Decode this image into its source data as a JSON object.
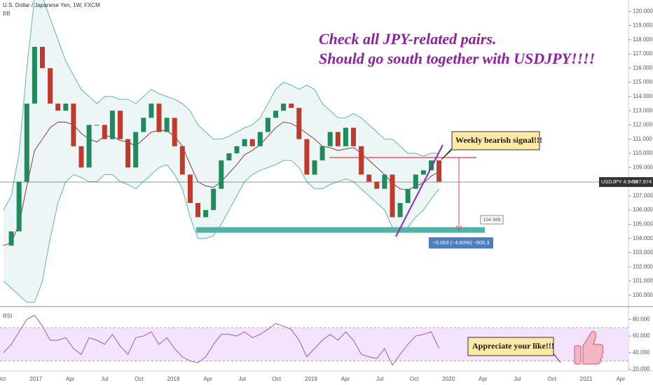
{
  "chart_data": {
    "type": "candlestick",
    "title": "U.S. Dollar / Japanese Yen, 1W, FXCM",
    "overlay_name": "BB",
    "rsi_name": "RSI",
    "headline": [
      "Check all JPY-related pairs.",
      "Should go south together with USDJPY!!!!"
    ],
    "callout_signal": "Weekly bearish signal!!!",
    "callout_like": "Appreciate your like!!!",
    "target_label": "104.686",
    "measure_label": "−5.053 (−4.60%) −505.3",
    "symbol_label": "USDJPY 4.94%",
    "current_price": {
      "value": 107.974,
      "label": "107.974"
    },
    "support": 104.6,
    "resistance": 109.7,
    "up_color": "#1f8a5c",
    "down_color": "#c0392b",
    "band_color": "#5fb3b3",
    "basis_color": "#8b3a3a",
    "rsi_color": "#9b59b6",
    "close": [
      103.5,
      104.5,
      108,
      113.5,
      117.5,
      116,
      113.5,
      113,
      113.5,
      110.5,
      109,
      112,
      112,
      111,
      113,
      111,
      109,
      111.5,
      112.5,
      113.5,
      111.5,
      112.5,
      110.5,
      108.5,
      106.5,
      105.5,
      106,
      107.5,
      109.5,
      110,
      110.5,
      111,
      110.5,
      111.5,
      112.5,
      113,
      113.5,
      113.2,
      111,
      108.5,
      109.5,
      110.5,
      111.5,
      110.5,
      111.8,
      110.5,
      108.5,
      108,
      107.5,
      108.5,
      105.5,
      106.5,
      107.5,
      108.5,
      108.8,
      109.5,
      108
    ],
    "bb_upper": [
      106,
      107,
      110,
      116,
      121,
      121,
      119.5,
      118,
      116.5,
      115.5,
      114.5,
      114,
      113.5,
      114,
      114,
      113.8,
      113.8,
      113.5,
      114,
      114.5,
      114.2,
      114,
      113.8,
      113.5,
      113,
      112,
      111.5,
      111,
      111,
      111.2,
      111.5,
      111.8,
      112,
      112.5,
      113.5,
      114.5,
      115,
      114.8,
      114.5,
      114.8,
      114.5,
      113.5,
      113,
      112.5,
      112.5,
      112.8,
      112.5,
      112,
      111.5,
      111,
      111,
      110.5,
      110,
      110,
      109.8,
      110,
      110
    ],
    "bb_basis": [
      103.5,
      103.7,
      105,
      107.7,
      110.2,
      111,
      111.8,
      112.2,
      112.2,
      112,
      111.4,
      111,
      110.8,
      111.2,
      111.2,
      110.9,
      110.8,
      110.5,
      111,
      111.5,
      111.6,
      111.6,
      111.2,
      110.5,
      109.2,
      108,
      107.7,
      107.6,
      108,
      108.6,
      109.2,
      109.9,
      110.2,
      110.6,
      111.2,
      111.8,
      112.2,
      112.1,
      111.8,
      111.4,
      111,
      110.5,
      110.4,
      110.2,
      110.3,
      110.4,
      110,
      109.5,
      109,
      108.5,
      107.9,
      107.5,
      107.4,
      107.7,
      107.9,
      108.4,
      108.7
    ],
    "bb_lower": [
      101,
      100.5,
      100,
      99.5,
      99.5,
      101,
      104,
      106.5,
      108,
      108.5,
      108.3,
      108,
      108,
      108.5,
      108.5,
      108,
      107.8,
      107.5,
      108,
      108.5,
      109,
      109.2,
      108.5,
      107.5,
      105.5,
      104,
      104,
      104.2,
      105,
      106,
      107,
      108,
      108.5,
      108.8,
      109,
      109.2,
      109.5,
      109.5,
      109,
      108,
      107.5,
      107.5,
      107.8,
      108,
      108.2,
      108,
      107.5,
      107,
      106.5,
      106,
      104.8,
      104.5,
      104.8,
      105.5,
      106,
      106.8,
      107.5
    ],
    "rsi": [
      40,
      50,
      65,
      80,
      85,
      72,
      55,
      55,
      58,
      45,
      38,
      58,
      55,
      50,
      62,
      48,
      38,
      58,
      60,
      65,
      50,
      58,
      45,
      35,
      30,
      28,
      35,
      50,
      62,
      62,
      60,
      65,
      58,
      62,
      68,
      75,
      72,
      68,
      55,
      35,
      45,
      55,
      62,
      55,
      65,
      55,
      38,
      35,
      33,
      45,
      25,
      38,
      50,
      60,
      62,
      65,
      45
    ],
    "rsi_bands": [
      30,
      70
    ],
    "ylim": [
      99.2,
      120.8
    ],
    "yticks": [
      {
        "value": 100,
        "label": "100.000"
      },
      {
        "value": 101,
        "label": "101.000"
      },
      {
        "value": 102,
        "label": "102.000"
      },
      {
        "value": 103,
        "label": "103.000"
      },
      {
        "value": 104,
        "label": "104.000"
      },
      {
        "value": 105,
        "label": "105.000"
      },
      {
        "value": 106,
        "label": "106.000"
      },
      {
        "value": 107,
        "label": "107.000"
      },
      {
        "value": 108,
        "label": "108.000"
      },
      {
        "value": 109,
        "label": "109.000"
      },
      {
        "value": 110,
        "label": "110.000"
      },
      {
        "value": 111,
        "label": "111.000"
      },
      {
        "value": 112,
        "label": "112.000"
      },
      {
        "value": 113,
        "label": "113.000"
      },
      {
        "value": 114,
        "label": "114.000"
      },
      {
        "value": 115,
        "label": "115.000"
      },
      {
        "value": 116,
        "label": "116.000"
      },
      {
        "value": 117,
        "label": "117.000"
      },
      {
        "value": 118,
        "label": "118.000"
      },
      {
        "value": 119,
        "label": "119.000"
      },
      {
        "value": 120,
        "label": "120.000"
      }
    ],
    "rsi_lim": [
      18,
      92
    ],
    "rsi_ticks": [
      {
        "value": 20,
        "label": "20.000"
      },
      {
        "value": 40,
        "label": "40.000"
      },
      {
        "value": 60,
        "label": "60.000"
      },
      {
        "value": 80,
        "label": "80.000"
      }
    ],
    "x_labels": [
      "Oct",
      "2017",
      "Apr",
      "Jul",
      "Oct",
      "2018",
      "Apr",
      "Jul",
      "Oct",
      "2019",
      "Apr",
      "Jul",
      "Oct",
      "2020",
      "Apr",
      "Jul",
      "Oct",
      "2021",
      "Apr"
    ]
  }
}
